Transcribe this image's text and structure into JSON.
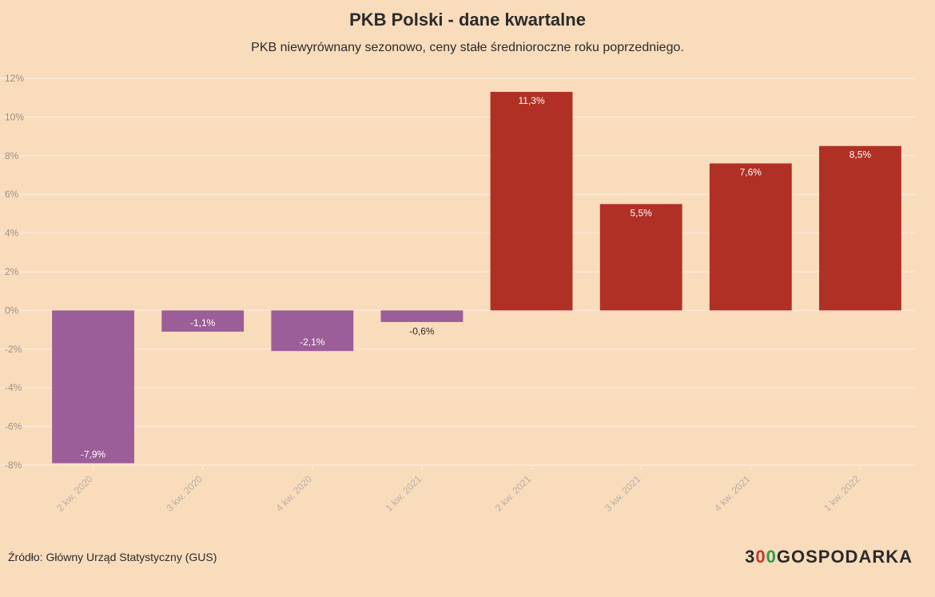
{
  "chart_data": {
    "type": "bar",
    "title": "PKB Polski - dane kwartalne",
    "subtitle": "PKB niewyrównany sezonowo, ceny stałe średnioroczne roku poprzedniego.",
    "categories": [
      "2 kw. 2020",
      "3 kw. 2020",
      "4 kw. 2020",
      "1 kw. 2021",
      "2 kw. 2021",
      "3 kw. 2021",
      "4 kw. 2021",
      "1 kw. 2022"
    ],
    "values": [
      -7.9,
      -1.1,
      -2.1,
      -0.6,
      11.3,
      5.5,
      7.6,
      8.5
    ],
    "data_labels": [
      "-7,9%",
      "-1,1%",
      "-2,1%",
      "-0,6%",
      "11,3%",
      "5,5%",
      "7,6%",
      "8,5%"
    ],
    "ylim": [
      -8,
      12
    ],
    "yticks": [
      "-8%",
      "-6%",
      "-4%",
      "-2%",
      "0%",
      "2%",
      "4%",
      "6%",
      "8%",
      "10%",
      "12%"
    ],
    "grid": true,
    "colors": {
      "negative": "#9b5e98",
      "positive": "#b03025"
    }
  },
  "footer": {
    "source": "Źródło: Główny Urząd Statystyczny (GUS)",
    "logo_3": "3",
    "logo_o1": "0",
    "logo_o2": "0",
    "logo_rest": "GOSPODARKA"
  }
}
